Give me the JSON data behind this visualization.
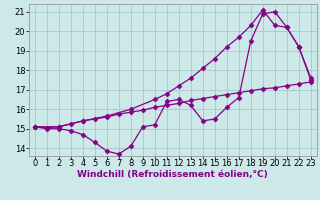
{
  "xlabel": "Windchill (Refroidissement éolien,°C)",
  "background_color": "#cce8e8",
  "line_color": "#880088",
  "grid_color": "#aacccc",
  "xlim": [
    -0.5,
    23.5
  ],
  "ylim": [
    13.6,
    21.4
  ],
  "xticks": [
    0,
    1,
    2,
    3,
    4,
    5,
    6,
    7,
    8,
    9,
    10,
    11,
    12,
    13,
    14,
    15,
    16,
    17,
    18,
    19,
    20,
    21,
    22,
    23
  ],
  "yticks": [
    14,
    15,
    16,
    17,
    18,
    19,
    20,
    21
  ],
  "line1_x": [
    0,
    1,
    2,
    3,
    4,
    5,
    6,
    7,
    8,
    9,
    10,
    11,
    12,
    13,
    14,
    15,
    16,
    17,
    18,
    19,
    20,
    21,
    22,
    23
  ],
  "line1_y": [
    15.1,
    15.0,
    15.0,
    14.9,
    14.7,
    14.3,
    13.85,
    13.7,
    14.1,
    15.1,
    15.2,
    16.4,
    16.5,
    16.2,
    15.4,
    15.5,
    16.1,
    16.6,
    19.5,
    20.9,
    21.0,
    20.2,
    19.2,
    17.6
  ],
  "line2_x": [
    0,
    1,
    2,
    3,
    4,
    5,
    6,
    7,
    8,
    9,
    10,
    11,
    12,
    13,
    14,
    15,
    16,
    17,
    18,
    19,
    20,
    21,
    22,
    23
  ],
  "line2_y": [
    15.1,
    15.05,
    15.1,
    15.25,
    15.4,
    15.5,
    15.6,
    15.75,
    15.85,
    15.95,
    16.1,
    16.2,
    16.3,
    16.45,
    16.55,
    16.65,
    16.75,
    16.85,
    16.95,
    17.05,
    17.1,
    17.2,
    17.3,
    17.4
  ],
  "line3_x": [
    0,
    2,
    4,
    6,
    8,
    10,
    11,
    12,
    13,
    14,
    15,
    16,
    17,
    18,
    19,
    20,
    21,
    22,
    23
  ],
  "line3_y": [
    15.1,
    15.1,
    15.4,
    15.65,
    16.0,
    16.5,
    16.8,
    17.2,
    17.6,
    18.1,
    18.6,
    19.2,
    19.7,
    20.3,
    21.1,
    20.3,
    20.2,
    19.2,
    17.5
  ],
  "fontsize_label": 6.5,
  "fontsize_tick": 6.0
}
